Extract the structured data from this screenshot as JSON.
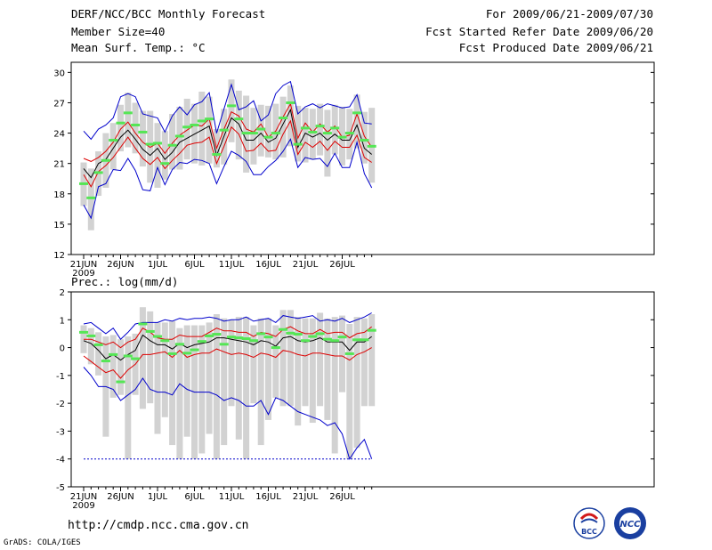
{
  "header": {
    "title": "DERF/NCC/BCC Monthly Forecast",
    "member_size": "Member Size=40",
    "variable": "Mean Surf. Temp.: °C",
    "period": "For 2009/06/21-2009/07/30",
    "start": "Fcst Started Refer Date 2009/06/20",
    "produced": "Fcst Produced Date 2009/06/21"
  },
  "footer": {
    "url": "http://cmdp.ncc.cma.gov.cn",
    "software": "GrADS: COLA/IGES"
  },
  "logos": {
    "left_text": "BCC",
    "right_text": "NCC"
  },
  "colors": {
    "box": "#d2d2d2",
    "median": "#55e655",
    "mean": "#000000",
    "sd": "#dd0000",
    "extreme": "#0000cc"
  },
  "chart_data": [
    {
      "type": "box-range",
      "title": "Mean Surf. Temp.: °C",
      "x_start_label": "21JUN",
      "x_year_label": "2009",
      "x_tick_labels": [
        "21JUN",
        "26JUN",
        "1JUL",
        "6JUL",
        "11JUL",
        "16JUL",
        "21JUL",
        "26JUL"
      ],
      "x_tick_days": [
        0,
        5,
        10,
        15,
        20,
        25,
        30,
        35
      ],
      "ylim": [
        12,
        31
      ],
      "y_ticks": [
        12,
        15,
        18,
        21,
        24,
        27,
        30
      ],
      "median": [
        19.0,
        17.6,
        20.1,
        21.3,
        23.3,
        25.0,
        26.0,
        24.8,
        24.1,
        22.9,
        23.0,
        21.0,
        22.8,
        23.7,
        24.6,
        24.8,
        25.2,
        25.4,
        21.9,
        24.3,
        26.7,
        25.4,
        24.0,
        24.0,
        24.4,
        23.6,
        24.0,
        25.5,
        27.0,
        22.9,
        24.5,
        24.1,
        24.7,
        24.0,
        24.5,
        23.6,
        24.0,
        26.0,
        23.3,
        22.7
      ],
      "box_low": [
        16.8,
        14.4,
        17.8,
        18.6,
        20.4,
        22.2,
        22.6,
        22.0,
        20.7,
        19.1,
        18.6,
        19.4,
        20.4,
        20.4,
        21.4,
        21.0,
        20.8,
        21.0,
        20.6,
        20.9,
        23.1,
        21.4,
        20.1,
        20.9,
        21.7,
        21.6,
        21.4,
        21.6,
        22.7,
        21.2,
        21.1,
        21.4,
        21.8,
        19.7,
        21.9,
        20.8,
        21.4,
        22.5,
        21.0,
        19.1
      ],
      "box_high": [
        21.1,
        20.5,
        22.2,
        24.0,
        25.0,
        26.8,
        28.0,
        27.0,
        26.2,
        26.2,
        25.0,
        24.2,
        25.9,
        26.6,
        27.4,
        26.9,
        28.1,
        27.6,
        24.4,
        26.4,
        29.3,
        28.2,
        27.7,
        26.5,
        26.8,
        26.7,
        26.9,
        27.6,
        28.7,
        26.7,
        26.5,
        26.4,
        26.9,
        26.3,
        26.8,
        26.6,
        26.4,
        27.8,
        26.1,
        26.5
      ],
      "mean": [
        20.5,
        19.6,
        21.0,
        21.4,
        22.5,
        23.6,
        24.3,
        23.4,
        22.4,
        21.8,
        22.5,
        21.4,
        22.1,
        23.1,
        23.5,
        23.9,
        24.3,
        24.7,
        21.8,
        23.7,
        25.5,
        24.9,
        23.3,
        23.3,
        24.0,
        23.1,
        23.5,
        24.9,
        26.3,
        22.6,
        24.0,
        23.6,
        24.0,
        23.3,
        23.9,
        23.3,
        23.3,
        24.8,
        22.5,
        21.9
      ],
      "sd_low": [
        19.9,
        18.7,
        20.2,
        20.8,
        21.6,
        22.6,
        23.6,
        22.5,
        21.5,
        20.9,
        21.6,
        20.5,
        21.3,
        22.0,
        22.8,
        23.0,
        23.1,
        23.6,
        21.0,
        22.7,
        24.6,
        23.9,
        22.2,
        22.3,
        23.0,
        22.2,
        22.3,
        23.9,
        25.2,
        21.9,
        23.1,
        22.6,
        23.2,
        22.3,
        23.2,
        22.6,
        22.6,
        23.8,
        21.6,
        21.1
      ],
      "sd_high": [
        21.5,
        21.2,
        21.6,
        22.2,
        23.1,
        24.4,
        25.1,
        24.0,
        23.1,
        22.6,
        23.0,
        22.0,
        23.0,
        23.8,
        24.3,
        24.8,
        24.7,
        25.4,
        22.5,
        24.4,
        26.1,
        25.7,
        24.4,
        24.1,
        24.9,
        23.6,
        24.2,
        25.6,
        26.9,
        23.5,
        25.0,
        24.1,
        24.9,
        24.1,
        24.7,
        23.6,
        23.8,
        25.9,
        23.7,
        22.6
      ],
      "min": [
        16.9,
        15.6,
        18.7,
        19.0,
        20.4,
        20.3,
        21.5,
        20.3,
        18.4,
        18.3,
        20.6,
        18.9,
        20.4,
        21.1,
        21.0,
        21.4,
        21.3,
        21.0,
        19.0,
        20.7,
        22.2,
        21.8,
        21.2,
        19.9,
        19.9,
        20.7,
        21.3,
        22.2,
        23.4,
        20.6,
        21.6,
        21.4,
        21.5,
        20.7,
        22.0,
        20.6,
        20.6,
        23.1,
        20.0,
        18.6
      ],
      "max": [
        24.2,
        23.4,
        24.4,
        24.8,
        25.5,
        27.6,
        27.9,
        27.6,
        25.9,
        25.7,
        25.5,
        24.1,
        25.7,
        26.6,
        25.8,
        26.8,
        27.1,
        28.0,
        24.0,
        26.4,
        28.8,
        26.3,
        26.6,
        27.2,
        25.2,
        25.8,
        27.9,
        28.7,
        29.1,
        25.9,
        26.6,
        26.9,
        26.5,
        26.9,
        26.7,
        26.5,
        26.6,
        27.8,
        25.0,
        24.9
      ]
    },
    {
      "type": "box-range",
      "title": "Prec.: log(mm/d)",
      "x_start_label": "21JUN",
      "x_year_label": "2009",
      "x_tick_labels": [
        "21JUN",
        "26JUN",
        "1JUL",
        "6JUL",
        "11JUL",
        "16JUL",
        "21JUL",
        "26JUL"
      ],
      "x_tick_days": [
        0,
        5,
        10,
        15,
        20,
        25,
        30,
        35
      ],
      "ylim": [
        -5,
        2
      ],
      "y_ticks": [
        -5,
        -4,
        -3,
        -2,
        -1,
        0,
        1,
        2
      ],
      "median": [
        0.55,
        0.42,
        0.1,
        -0.48,
        -0.25,
        -1.23,
        -0.3,
        -0.4,
        0.85,
        0.58,
        0.4,
        0.25,
        -0.22,
        0.12,
        -0.2,
        -0.08,
        0.22,
        0.42,
        0.48,
        0.12,
        0.38,
        0.35,
        0.32,
        0.25,
        0.5,
        0.38,
        0.0,
        0.65,
        0.52,
        0.48,
        0.25,
        0.4,
        0.5,
        0.3,
        0.25,
        0.38,
        -0.22,
        0.28,
        0.28,
        0.62
      ],
      "box_low": [
        -0.2,
        -0.6,
        -1.0,
        -3.2,
        -1.8,
        -1.7,
        -4.0,
        -1.7,
        -2.2,
        -2.0,
        -3.1,
        -2.5,
        -3.5,
        -4.0,
        -3.2,
        -4.0,
        -3.8,
        -3.1,
        -4.0,
        -3.5,
        -2.1,
        -3.3,
        -4.0,
        -2.0,
        -3.5,
        -2.6,
        -1.8,
        -2.1,
        -2.1,
        -2.8,
        -2.1,
        -2.7,
        -2.1,
        -2.6,
        -3.8,
        -1.6,
        -4.0,
        -3.6,
        -2.1,
        -2.1
      ],
      "box_high": [
        0.8,
        0.7,
        0.55,
        0.4,
        0.45,
        0.3,
        0.4,
        0.5,
        1.45,
        1.3,
        0.9,
        0.9,
        0.95,
        0.7,
        0.8,
        0.8,
        0.8,
        0.9,
        1.2,
        1.05,
        1.0,
        1.1,
        1.1,
        0.8,
        1.05,
        1.05,
        0.8,
        1.35,
        1.35,
        1.1,
        1.05,
        1.05,
        1.25,
        1.05,
        1.1,
        1.15,
        0.85,
        1.1,
        1.05,
        1.2
      ],
      "mean": [
        0.25,
        0.15,
        -0.1,
        -0.4,
        -0.25,
        -0.45,
        -0.25,
        -0.1,
        0.45,
        0.25,
        0.1,
        0.1,
        -0.05,
        0.15,
        0.0,
        0.1,
        0.15,
        0.2,
        0.35,
        0.35,
        0.3,
        0.25,
        0.2,
        0.1,
        0.25,
        0.2,
        0.05,
        0.35,
        0.4,
        0.25,
        0.2,
        0.25,
        0.35,
        0.2,
        0.2,
        0.2,
        -0.1,
        0.2,
        0.2,
        0.4
      ],
      "sd_low": [
        -0.3,
        -0.5,
        -0.7,
        -0.9,
        -0.8,
        -1.1,
        -0.8,
        -0.6,
        -0.25,
        -0.25,
        -0.2,
        -0.15,
        -0.35,
        -0.1,
        -0.35,
        -0.25,
        -0.2,
        -0.2,
        -0.05,
        -0.15,
        -0.25,
        -0.2,
        -0.25,
        -0.35,
        -0.2,
        -0.25,
        -0.35,
        -0.1,
        -0.15,
        -0.25,
        -0.3,
        -0.2,
        -0.2,
        -0.25,
        -0.3,
        -0.3,
        -0.45,
        -0.25,
        -0.15,
        0.0
      ],
      "sd_high": [
        0.3,
        0.3,
        0.2,
        0.1,
        0.2,
        0.0,
        0.2,
        0.3,
        0.7,
        0.55,
        0.35,
        0.3,
        0.3,
        0.45,
        0.4,
        0.4,
        0.4,
        0.55,
        0.7,
        0.6,
        0.6,
        0.55,
        0.55,
        0.4,
        0.55,
        0.5,
        0.4,
        0.65,
        0.75,
        0.6,
        0.5,
        0.5,
        0.65,
        0.5,
        0.55,
        0.55,
        0.35,
        0.5,
        0.55,
        0.75
      ],
      "min": [
        -0.7,
        -1.0,
        -1.4,
        -1.4,
        -1.5,
        -1.9,
        -1.7,
        -1.5,
        -1.1,
        -1.5,
        -1.6,
        -1.6,
        -1.7,
        -1.3,
        -1.5,
        -1.6,
        -1.6,
        -1.6,
        -1.7,
        -1.9,
        -1.8,
        -1.9,
        -2.1,
        -2.1,
        -1.9,
        -2.4,
        -1.8,
        -1.9,
        -2.1,
        -2.3,
        -2.4,
        -2.5,
        -2.6,
        -2.8,
        -2.7,
        -3.1,
        -4.0,
        -3.6,
        -3.3,
        -4.0
      ],
      "max": [
        0.85,
        0.9,
        0.7,
        0.5,
        0.7,
        0.3,
        0.55,
        0.85,
        0.9,
        0.9,
        0.9,
        1.0,
        0.95,
        1.05,
        1.0,
        1.05,
        1.05,
        1.1,
        1.05,
        0.95,
        1.0,
        1.0,
        1.1,
        0.95,
        1.0,
        1.05,
        0.9,
        1.15,
        1.1,
        1.05,
        1.1,
        1.15,
        0.95,
        1.0,
        0.95,
        1.05,
        0.9,
        1.0,
        1.1,
        1.25
      ]
    }
  ]
}
